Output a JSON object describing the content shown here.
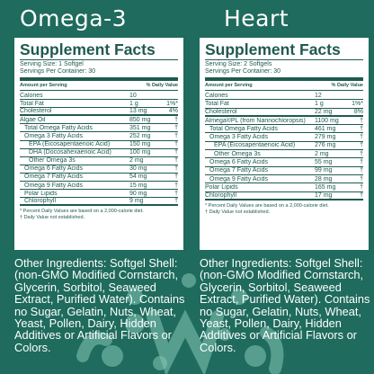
{
  "colors": {
    "background": "#1f6b5d",
    "panel": "#ffffff",
    "panel_text": "#1f5a4f",
    "decor": "#86c8b6"
  },
  "left": {
    "title": "Omega-3",
    "facts_title": "Supplement Facts",
    "serving_size": "Serving Size: 1 Softgel",
    "servings_per_container": "Servings Per Container: 30",
    "amount_header": "Amount per Serving",
    "dv_header": "% Daily Value",
    "rows": [
      {
        "name": "Calories",
        "amount": "10",
        "dv": "",
        "indent": 0,
        "rule": "normal"
      },
      {
        "name": "Total Fat",
        "amount": "1 g",
        "dv": "1%*",
        "indent": 0,
        "rule": "normal"
      },
      {
        "name": "Cholesterol",
        "amount": "13 mg",
        "dv": "4%",
        "indent": 0,
        "rule": "bold"
      },
      {
        "name": "Algae Oil",
        "amount": "850 mg",
        "dv": "†",
        "indent": 0,
        "rule": "normal"
      },
      {
        "name": "Total Omega Fatty Acids",
        "amount": "351 mg",
        "dv": "†",
        "indent": 1,
        "rule": "normal"
      },
      {
        "name": "Omega 3 Fatty Acids",
        "amount": "252 mg",
        "dv": "†",
        "indent": 1,
        "rule": "normal"
      },
      {
        "name": "EPA (Eicosapentaenoic Acid)",
        "amount": "150 mg",
        "dv": "†",
        "indent": 2,
        "rule": "normal"
      },
      {
        "name": "DHA (Docosahexaenoic Acid)",
        "amount": "100 mg",
        "dv": "†",
        "indent": 2,
        "rule": "normal"
      },
      {
        "name": "Other Omega 3s",
        "amount": "2 mg",
        "dv": "†",
        "indent": 2,
        "rule": "normal"
      },
      {
        "name": "Omega 6 Fatty Acids",
        "amount": "30 mg",
        "dv": "†",
        "indent": 1,
        "rule": "normal"
      },
      {
        "name": "Omega 7 Fatty Acids",
        "amount": "54 mg",
        "dv": "†",
        "indent": 1,
        "rule": "normal"
      },
      {
        "name": "Omega 9 Fatty Acids",
        "amount": "15 mg",
        "dv": "†",
        "indent": 1,
        "rule": "normal"
      },
      {
        "name": "Polar Lipids",
        "amount": "90 mg",
        "dv": "†",
        "indent": 1,
        "rule": "normal"
      },
      {
        "name": "Chlorophyll",
        "amount": "9 mg",
        "dv": "†",
        "indent": 1,
        "rule": "bold"
      }
    ],
    "footnote_1": "* Percent Daily Values are based on a 2,000-calorie diet.",
    "footnote_2": "† Daily Value not established.",
    "ingredients": "Other Ingredients: Softgel Shell: (non-GMO Modified Cornstarch, Glycerin, Sorbitol, Seaweed Extract, Purified Water). Contains no Sugar, Gelatin, Nuts, Wheat, Yeast, Pollen, Dairy, Hidden Additives or Artificial Flavors or Colors."
  },
  "right": {
    "title": "Heart",
    "facts_title": "Supplement Facts",
    "serving_size": "Serving Size: 2 Softgels",
    "servings_per_container": "Servings Per Container: 30",
    "amount_header": "Amount per Serving",
    "dv_header": "% Daily Value",
    "rows": [
      {
        "name": "Calories",
        "amount": "12",
        "dv": "",
        "indent": 0,
        "rule": "normal"
      },
      {
        "name": "Total Fat",
        "amount": "1 g",
        "dv": "1%*",
        "indent": 0,
        "rule": "normal"
      },
      {
        "name": "Cholesterol",
        "amount": "22 mg",
        "dv": "8%",
        "indent": 0,
        "rule": "bold"
      },
      {
        "name": "Almega®PL (from Nannochloropsis)",
        "amount": "1100 mg",
        "dv": "†",
        "indent": 0,
        "rule": "normal"
      },
      {
        "name": "Total Omega Fatty Acids",
        "amount": "461 mg",
        "dv": "†",
        "indent": 1,
        "rule": "normal"
      },
      {
        "name": "Omega 3 Fatty Acids",
        "amount": "279 mg",
        "dv": "†",
        "indent": 1,
        "rule": "normal"
      },
      {
        "name": "EPA (Eicosapentaenoic Acid)",
        "amount": "276 mg",
        "dv": "†",
        "indent": 2,
        "rule": "normal"
      },
      {
        "name": "Other Omega 3s",
        "amount": "2 mg",
        "dv": "†",
        "indent": 2,
        "rule": "normal"
      },
      {
        "name": "Omega 6 Fatty Acids",
        "amount": "55 mg",
        "dv": "†",
        "indent": 1,
        "rule": "normal"
      },
      {
        "name": "Omega 7 Fatty Acids",
        "amount": "99 mg",
        "dv": "†",
        "indent": 1,
        "rule": "normal"
      },
      {
        "name": "Omega 9 Fatty Acids",
        "amount": "28 mg",
        "dv": "†",
        "indent": 1,
        "rule": "normal"
      },
      {
        "name": "Polar Lipids",
        "amount": "165 mg",
        "dv": "†",
        "indent": 0,
        "rule": "normal"
      },
      {
        "name": "Chlorophyll",
        "amount": "17 mg",
        "dv": "†",
        "indent": 0,
        "rule": "bold"
      }
    ],
    "footnote_1": "* Percent Daily Values are based on a 2,000-calorie diet.",
    "footnote_2": "† Daily Value not established.",
    "ingredients": "Other Ingredients: Softgel Shell: (non-GMO Modified Cornstarch, Glycerin, Sorbitol, Seaweed Extract, Purified Water). Contains no Sugar, Gelatin, Nuts, Wheat, Yeast, Pollen, Dairy, Hidden Additives or Artificial Flavors or Colors."
  }
}
